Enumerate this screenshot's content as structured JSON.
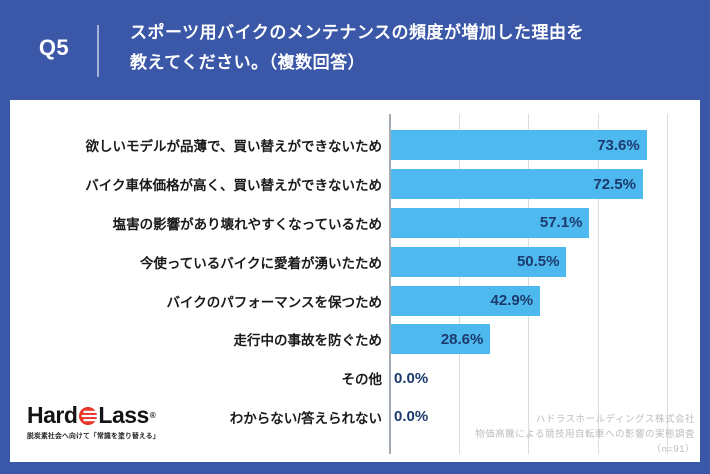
{
  "header": {
    "question_number": "Q5",
    "title_line1": "スポーツ用バイクのメンテナンスの頻度が増加した理由を",
    "title_line2": "教えてください。（複数回答）"
  },
  "chart_data": {
    "type": "bar",
    "orientation": "horizontal",
    "categories": [
      "欲しいモデルが品薄で、買い替えができないため",
      "バイク車体価格が高く、買い替えができないため",
      "塩害の影響があり壊れやすくなっているため",
      "今使っているバイクに愛着が湧いたため",
      "バイクのパフォーマンスを保つため",
      "走行中の事故を防ぐため",
      "その他",
      "わからない/答えられない"
    ],
    "values": [
      73.6,
      72.5,
      57.1,
      50.5,
      42.9,
      28.6,
      0.0,
      0.0
    ],
    "value_labels": [
      "73.6%",
      "72.5%",
      "57.1%",
      "50.5%",
      "42.9%",
      "28.6%",
      "0.0%",
      "0.0%"
    ],
    "xlim": [
      0,
      80
    ],
    "gridline_step": 20,
    "grid": true,
    "legend": "none",
    "bar_color": "#4db9ef",
    "value_label_color": "#1c3a6d"
  },
  "logo": {
    "brand_part1": "Hard",
    "brand_part2": "Lass",
    "registered_mark": "®",
    "icon": "red-striped-disc-icon",
    "tagline": "脱炭素社会へ向けて「常識を塗り替える」",
    "red": "#e8362b"
  },
  "source": {
    "line1": "ハドラスホールディングス株式会社",
    "line2": "物価高騰による競技用自転車への影響の実態調査",
    "line3": "（n=91）"
  },
  "colors": {
    "frame_blue": "#3a57a8",
    "panel_white": "#ffffff",
    "gridline": "#dcdcdc",
    "axis": "#a5abb3",
    "category_text": "#1a1a1a",
    "source_text": "#bdbdbd"
  }
}
